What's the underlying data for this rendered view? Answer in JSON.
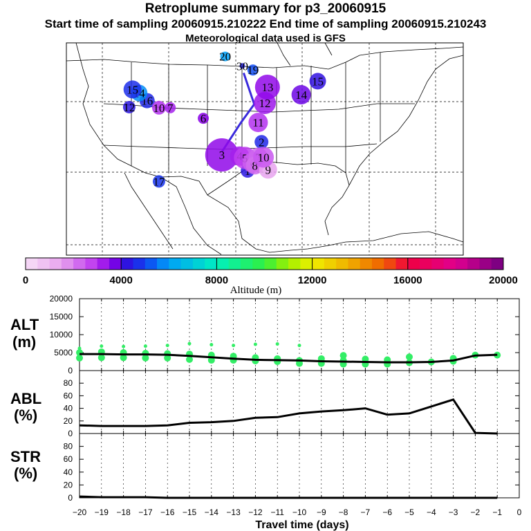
{
  "header": {
    "title": "Retroplume summary for p3_20060915",
    "sampling_line": "Start time of sampling 20060915.210222     End time of sampling 20060915.210243",
    "met_line": "Meteorological data used is GFS"
  },
  "map": {
    "region": "Continental United States, Mexico and Gulf of Mexico",
    "trajectory_color": "#3a2adc",
    "trajectory_path": [
      [
        -98.2,
        46.9
      ],
      [
        -96.6,
        41.6
      ],
      [
        -98.6,
        38.5
      ],
      [
        -101.5,
        33.5
      ]
    ],
    "plume_points": [
      {
        "label": "1",
        "lon": -97.6,
        "lat": 30.3,
        "alt": 4300,
        "size": 10
      },
      {
        "label": "2",
        "lon": -95.5,
        "lat": 35.2,
        "alt": 4600,
        "size": 10
      },
      {
        "label": "3",
        "lon": -101.5,
        "lat": 33.0,
        "alt": 3500,
        "size": 24
      },
      {
        "label": "4",
        "lon": -98.8,
        "lat": 32.8,
        "alt": 3200,
        "size": 14
      },
      {
        "label": "5",
        "lon": -98.0,
        "lat": 32.5,
        "alt": 2800,
        "size": 16
      },
      {
        "label": "6",
        "lon": -96.8,
        "lat": 31.7,
        "alt": 2400,
        "size": 15
      },
      {
        "label": "7",
        "lon": -96.0,
        "lat": 32.6,
        "alt": 2300,
        "size": 14
      },
      {
        "label": "8",
        "lon": -96.5,
        "lat": 31.2,
        "alt": 2200,
        "size": 13
      },
      {
        "label": "9",
        "lon": -94.5,
        "lat": 30.5,
        "alt": 1500,
        "size": 13
      },
      {
        "label": "10",
        "lon": -95.2,
        "lat": 32.6,
        "alt": 2500,
        "size": 15
      },
      {
        "label": "11",
        "lon": -96.0,
        "lat": 38.5,
        "alt": 3000,
        "size": 14
      },
      {
        "label": "12",
        "lon": -95.0,
        "lat": 41.8,
        "alt": 3300,
        "size": 16
      },
      {
        "label": "13",
        "lon": -94.6,
        "lat": 44.5,
        "alt": 3500,
        "size": 18
      },
      {
        "label": "14",
        "lon": -89.5,
        "lat": 43.2,
        "alt": 3800,
        "size": 14
      },
      {
        "label": "15",
        "lon": -87.0,
        "lat": 45.5,
        "alt": 4200,
        "size": 12
      },
      {
        "label": "16",
        "lon": -112.8,
        "lat": 42.2,
        "alt": 4600,
        "size": 11
      },
      {
        "label": "17",
        "lon": -111.0,
        "lat": 28.5,
        "alt": 4800,
        "size": 9
      },
      {
        "label": "19",
        "lon": -96.8,
        "lat": 47.4,
        "alt": 5100,
        "size": 8
      },
      {
        "label": "20",
        "lon": -101.0,
        "lat": 49.7,
        "alt": 6000,
        "size": 7
      },
      {
        "label": "30",
        "lon": -98.4,
        "lat": 48.1,
        "alt": 4500,
        "size": 4
      },
      {
        "label": "14",
        "lon": -114.0,
        "lat": 43.5,
        "alt": 5800,
        "size": 12
      },
      {
        "label": "15",
        "lon": -115.0,
        "lat": 44.1,
        "alt": 4700,
        "size": 13
      },
      {
        "label": "10",
        "lon": -111.0,
        "lat": 41.0,
        "alt": 3000,
        "size": 10
      },
      {
        "label": "7",
        "lon": -109.3,
        "lat": 41.0,
        "alt": 3200,
        "size": 8
      },
      {
        "label": "12",
        "lon": -115.5,
        "lat": 41.1,
        "alt": 4300,
        "size": 9
      },
      {
        "label": "6",
        "lon": -104.3,
        "lat": 39.2,
        "alt": 3600,
        "size": 8
      }
    ]
  },
  "colorbar": {
    "tick_labels": [
      "0",
      "4000",
      "8000",
      "12000",
      "16000",
      "20000"
    ],
    "label": "Altitude (m)"
  },
  "panels": {
    "alt_label_line1": "ALT",
    "alt_label_line2": "(m)",
    "abl_label_line1": "ABL",
    "abl_label_line2": "(%)",
    "str_label_line1": "STR",
    "str_label_line2": "(%)",
    "xlabel": "Travel time (days)"
  },
  "chart_data": [
    {
      "type": "line",
      "name": "ALT",
      "ylabel": "ALT (m)",
      "x": [
        -20,
        -19,
        -18,
        -17,
        -16,
        -15,
        -14,
        -13,
        -12,
        -11,
        -10,
        -9,
        -8,
        -7,
        -6,
        -5,
        -4,
        -3,
        -2,
        -1
      ],
      "values": [
        4600,
        4600,
        4500,
        4500,
        4400,
        4100,
        3700,
        3300,
        3000,
        2900,
        2800,
        2600,
        2500,
        2400,
        2300,
        2300,
        2400,
        2800,
        4200,
        4400
      ],
      "ylim": [
        0,
        20000
      ],
      "yticks": [
        0,
        5000,
        10000,
        15000,
        20000
      ],
      "scatter_color": "#33ee66",
      "scatter": [
        {
          "x": -20,
          "y": [
            6200,
            5000,
            3500
          ]
        },
        {
          "x": -19,
          "y": [
            6800,
            5200,
            3600
          ]
        },
        {
          "x": -18,
          "y": [
            6700,
            5000,
            3600
          ]
        },
        {
          "x": -17,
          "y": [
            6800,
            4800,
            3500
          ]
        },
        {
          "x": -16,
          "y": [
            7000,
            4700,
            3500
          ]
        },
        {
          "x": -15,
          "y": [
            7500,
            4600,
            3100
          ]
        },
        {
          "x": -14,
          "y": [
            7200,
            4300,
            2900
          ]
        },
        {
          "x": -13,
          "y": [
            7000,
            4000,
            2900
          ]
        },
        {
          "x": -12,
          "y": [
            7300,
            3600,
            2700
          ]
        },
        {
          "x": -11,
          "y": [
            7400,
            3300,
            2500
          ]
        },
        {
          "x": -10,
          "y": [
            7000,
            2800,
            2000
          ]
        },
        {
          "x": -9,
          "y": [
            3300,
            2000
          ]
        },
        {
          "x": -8,
          "y": [
            4200,
            2800,
            1800
          ]
        },
        {
          "x": -7,
          "y": [
            3200,
            1800
          ]
        },
        {
          "x": -6,
          "y": [
            3000,
            1800
          ]
        },
        {
          "x": -5,
          "y": [
            3800,
            2200
          ]
        },
        {
          "x": -4,
          "y": [
            2400
          ]
        },
        {
          "x": -3,
          "y": [
            3400,
            2600
          ]
        },
        {
          "x": -2,
          "y": [
            4300
          ]
        },
        {
          "x": -1,
          "y": [
            4300
          ]
        }
      ],
      "xlim": [
        -20,
        0
      ]
    },
    {
      "type": "line",
      "name": "ABL",
      "ylabel": "ABL (%)",
      "x": [
        -20,
        -19,
        -18,
        -17,
        -16,
        -15,
        -14,
        -13,
        -12,
        -11,
        -10,
        -9,
        -8,
        -7,
        -6,
        -5,
        -4,
        -3,
        -2,
        -1
      ],
      "values": [
        13,
        12,
        12,
        12,
        13,
        17,
        18,
        20,
        25,
        26,
        32,
        35,
        37,
        40,
        30,
        32,
        43,
        54,
        1,
        0
      ],
      "ylim": [
        0,
        100
      ],
      "yticks": [
        0,
        20,
        40,
        60,
        80
      ],
      "xlim": [
        -20,
        0
      ]
    },
    {
      "type": "line",
      "name": "STR",
      "ylabel": "STR (%)",
      "x": [
        -20,
        -19,
        -18,
        -17,
        -16,
        -15,
        -14,
        -13,
        -12,
        -11,
        -10,
        -9,
        -8,
        -7,
        -6,
        -5,
        -4,
        -3,
        -2,
        -1
      ],
      "values": [
        2,
        1,
        1,
        1,
        0,
        0,
        0,
        0,
        0,
        0,
        0,
        0,
        0,
        0,
        0,
        0,
        0,
        0,
        0,
        0
      ],
      "ylim": [
        0,
        100
      ],
      "yticks": [
        0,
        20,
        40,
        60,
        80
      ],
      "xlim": [
        -20,
        0
      ],
      "xticks": [
        -20,
        -19,
        -18,
        -17,
        -16,
        -15,
        -14,
        -13,
        -12,
        -11,
        -10,
        -9,
        -8,
        -7,
        -6,
        -5,
        -4,
        -3,
        -2,
        -1,
        0
      ],
      "xtick_labels": [
        "−20",
        "−19",
        "−18",
        "−17",
        "−16",
        "−15",
        "−14",
        "−13",
        "−12",
        "−11",
        "−10",
        "−9",
        "−8",
        "−7",
        "−6",
        "−5",
        "−4",
        "−3",
        "−2",
        "−1",
        "0"
      ]
    }
  ]
}
